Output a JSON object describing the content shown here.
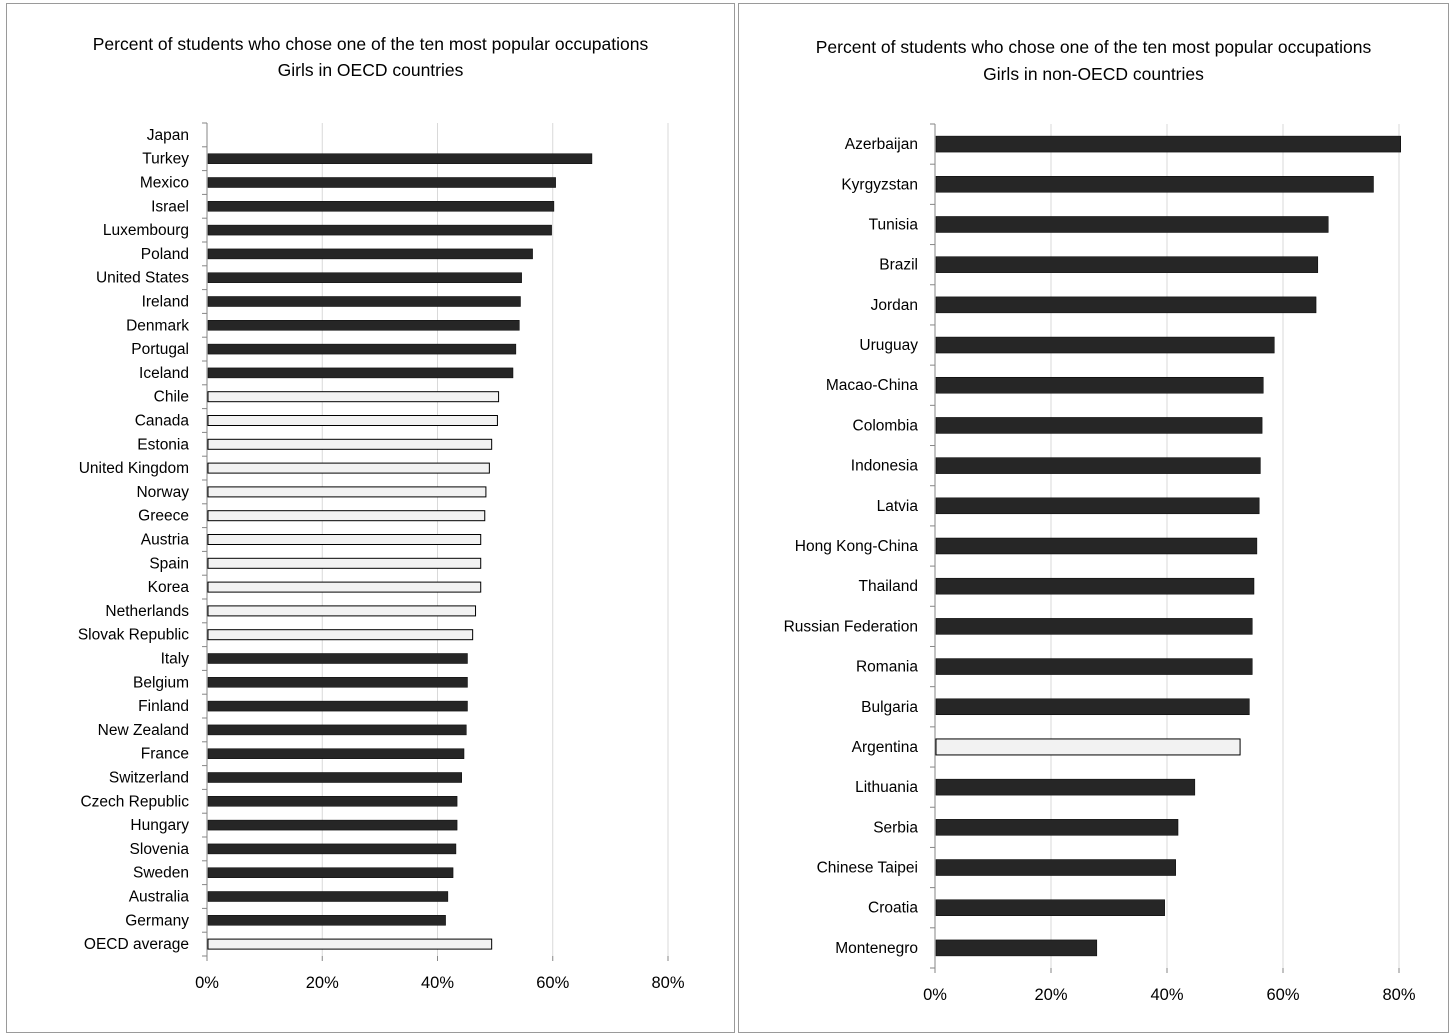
{
  "chart_data": [
    {
      "type": "bar",
      "orientation": "horizontal",
      "title": "Percent of students  who chose one of  the ten most popular occupations",
      "subtitle": "Girls in OECD countries",
      "xlabel": "",
      "ylabel": "",
      "xlim": [
        0,
        80
      ],
      "xticks": [
        "0%",
        "20%",
        "40%",
        "60%",
        "80%"
      ],
      "grid": "vertical",
      "legend": "none",
      "categories": [
        "Japan",
        "Turkey",
        "Mexico",
        "Israel",
        "Luxembourg",
        "Poland",
        "United States",
        "Ireland",
        "Denmark",
        "Portugal",
        "Iceland",
        "Chile",
        "Canada",
        "Estonia",
        "United Kingdom",
        "Norway",
        "Greece",
        "Austria",
        "Spain",
        "Korea",
        "Netherlands",
        "Slovak Republic",
        "Italy",
        "Belgium",
        "Finland",
        "New Zealand",
        "France",
        "Switzerland",
        "Czech Republic",
        "Hungary",
        "Slovenia",
        "Sweden",
        "Australia",
        "Germany",
        "OECD average"
      ],
      "values": [
        null,
        66.8,
        60.5,
        60.2,
        59.8,
        56.5,
        54.6,
        54.4,
        54.2,
        53.6,
        53.1,
        50.6,
        50.4,
        49.4,
        49.0,
        48.4,
        48.2,
        47.5,
        47.5,
        47.5,
        46.6,
        46.1,
        45.2,
        45.2,
        45.2,
        45.0,
        44.6,
        44.2,
        43.4,
        43.4,
        43.2,
        42.7,
        41.8,
        41.4,
        49.4
      ],
      "bar_style": [
        "dark",
        "dark",
        "dark",
        "dark",
        "dark",
        "dark",
        "dark",
        "dark",
        "dark",
        "dark",
        "dark",
        "light",
        "light",
        "light",
        "light",
        "light",
        "light",
        "light",
        "light",
        "light",
        "light",
        "light",
        "dark",
        "dark",
        "dark",
        "dark",
        "dark",
        "dark",
        "dark",
        "dark",
        "dark",
        "dark",
        "dark",
        "dark",
        "light"
      ],
      "colors": {
        "dark": "#262626",
        "light": "#f2f2f2",
        "outline": "#000000",
        "grid": "#d9d9d9",
        "axis": "#868686"
      }
    },
    {
      "type": "bar",
      "orientation": "horizontal",
      "title": "Percent of students who chose one of  the ten most popular occupations",
      "subtitle": "Girls in non-OECD countries",
      "xlabel": "",
      "ylabel": "",
      "xlim": [
        0,
        80
      ],
      "xticks": [
        "0%",
        "20%",
        "40%",
        "60%",
        "80%"
      ],
      "grid": "vertical",
      "legend": "none",
      "categories": [
        "Azerbaijan",
        "Kyrgyzstan",
        "Tunisia",
        "Brazil",
        "Jordan",
        "Uruguay",
        "Macao-China",
        "Colombia",
        "Indonesia",
        "Latvia",
        "Hong Kong-China",
        "Thailand",
        "Russian Federation",
        "Romania",
        "Bulgaria",
        "Argentina",
        "Lithuania",
        "Serbia",
        "Chinese Taipei",
        "Croatia",
        "Montenegro"
      ],
      "values": [
        80.3,
        75.6,
        67.8,
        66.0,
        65.7,
        58.5,
        56.6,
        56.4,
        56.1,
        55.9,
        55.5,
        55.0,
        54.7,
        54.7,
        54.2,
        52.6,
        44.8,
        41.9,
        41.5,
        39.6,
        27.9
      ],
      "bar_style": [
        "dark",
        "dark",
        "dark",
        "dark",
        "dark",
        "dark",
        "dark",
        "dark",
        "dark",
        "dark",
        "dark",
        "dark",
        "dark",
        "dark",
        "dark",
        "light",
        "dark",
        "dark",
        "dark",
        "dark",
        "dark"
      ],
      "colors": {
        "dark": "#262626",
        "light": "#f2f2f2",
        "outline": "#000000",
        "grid": "#d9d9d9",
        "axis": "#868686"
      }
    }
  ]
}
